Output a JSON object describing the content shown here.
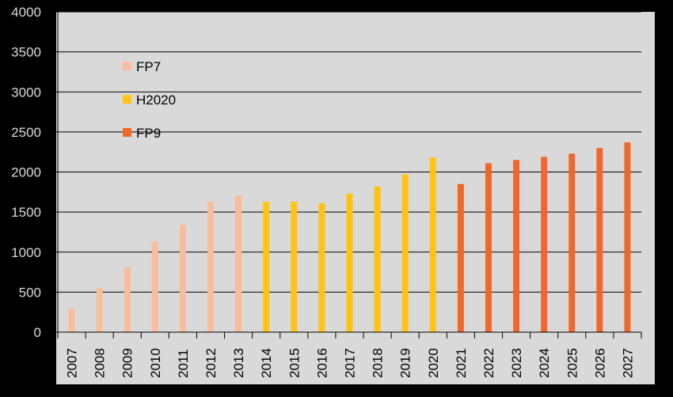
{
  "chart_data": {
    "type": "bar",
    "title": "",
    "xlabel": "",
    "ylabel": "",
    "ylim": [
      0,
      4000
    ],
    "yticks": [
      0,
      500,
      1000,
      1500,
      2000,
      2500,
      3000,
      3500,
      4000
    ],
    "grid": true,
    "legend_position": "top-left",
    "categories": [
      "2007",
      "2008",
      "2009",
      "2010",
      "2011",
      "2012",
      "2013",
      "2014",
      "2015",
      "2016",
      "2017",
      "2018",
      "2019",
      "2020",
      "2021",
      "2022",
      "2023",
      "2024",
      "2025",
      "2026",
      "2027"
    ],
    "series": [
      {
        "name": "FP7",
        "color": "#f8bd9a",
        "values": [
          290,
          550,
          810,
          1130,
          1340,
          1630,
          1710,
          null,
          null,
          null,
          null,
          null,
          null,
          null,
          null,
          null,
          null,
          null,
          null,
          null,
          null
        ]
      },
      {
        "name": "H2020",
        "color": "#ffc312",
        "values": [
          null,
          null,
          null,
          null,
          null,
          null,
          null,
          1630,
          1630,
          1610,
          1730,
          1820,
          1970,
          2180,
          null,
          null,
          null,
          null,
          null,
          null,
          null
        ]
      },
      {
        "name": "FP9",
        "color": "#f0672a",
        "values": [
          null,
          null,
          null,
          null,
          null,
          null,
          null,
          null,
          null,
          null,
          null,
          null,
          null,
          null,
          1850,
          2110,
          2150,
          2190,
          2230,
          2300,
          2370
        ]
      }
    ]
  }
}
